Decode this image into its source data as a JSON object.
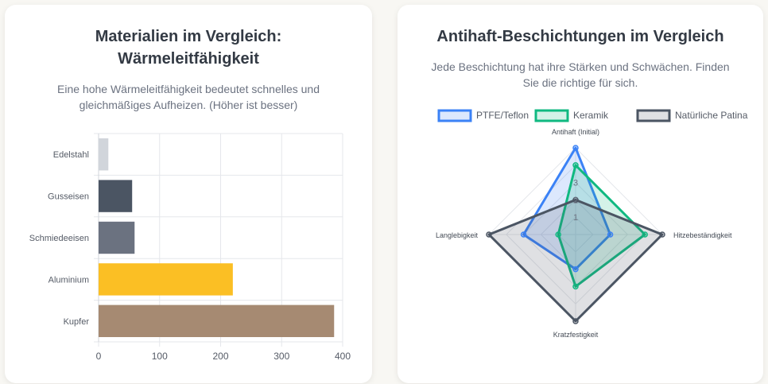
{
  "left": {
    "title_line1": "Materialien im Vergleich:",
    "title_line2": "Wärmeleitfähigkeit",
    "subtitle_line1": "Eine hohe Wärmeleitfähigkeit bedeutet schnelles und",
    "subtitle_line2": "gleichmäßiges Aufheizen. (Höher ist besser)"
  },
  "right": {
    "title": "Antihaft-Beschichtungen im Vergleich",
    "subtitle_line1": "Jede Beschichtung hat ihre Stärken und Schwächen. Finden",
    "subtitle_line2": "Sie die richtige für sich."
  },
  "chart_data": [
    {
      "type": "bar",
      "orientation": "horizontal",
      "categories": [
        "Edelstahl",
        "Gusseisen",
        "Schmiedeeisen",
        "Aluminium",
        "Kupfer"
      ],
      "values": [
        16,
        55,
        59,
        220,
        386
      ],
      "colors": [
        "#d1d5db",
        "#4b5563",
        "#6b7280",
        "#fbbf24",
        "#a68a72"
      ],
      "xlim": [
        0,
        400
      ],
      "xticks": [
        0,
        100,
        200,
        300,
        400
      ],
      "grid": true
    },
    {
      "type": "radar",
      "axes": [
        "Antihaft (Initial)",
        "Hitzebeständigkeit",
        "Kratzfestigkeit",
        "Langlebigkeit"
      ],
      "rmax": 5,
      "ticks": [
        1,
        2,
        3
      ],
      "legend_position": "top",
      "series": [
        {
          "name": "PTFE/Teflon",
          "values": [
            5,
            2,
            2,
            3
          ],
          "color": "#3b82f6",
          "fill": "rgba(59,130,246,0.18)"
        },
        {
          "name": "Keramik",
          "values": [
            4,
            4,
            3,
            1
          ],
          "color": "#10b981",
          "fill": "rgba(16,185,129,0.18)"
        },
        {
          "name": "Natürliche Patina",
          "values": [
            2,
            5,
            5,
            5
          ],
          "color": "#4b5563",
          "fill": "rgba(75,85,99,0.18)"
        }
      ]
    }
  ]
}
